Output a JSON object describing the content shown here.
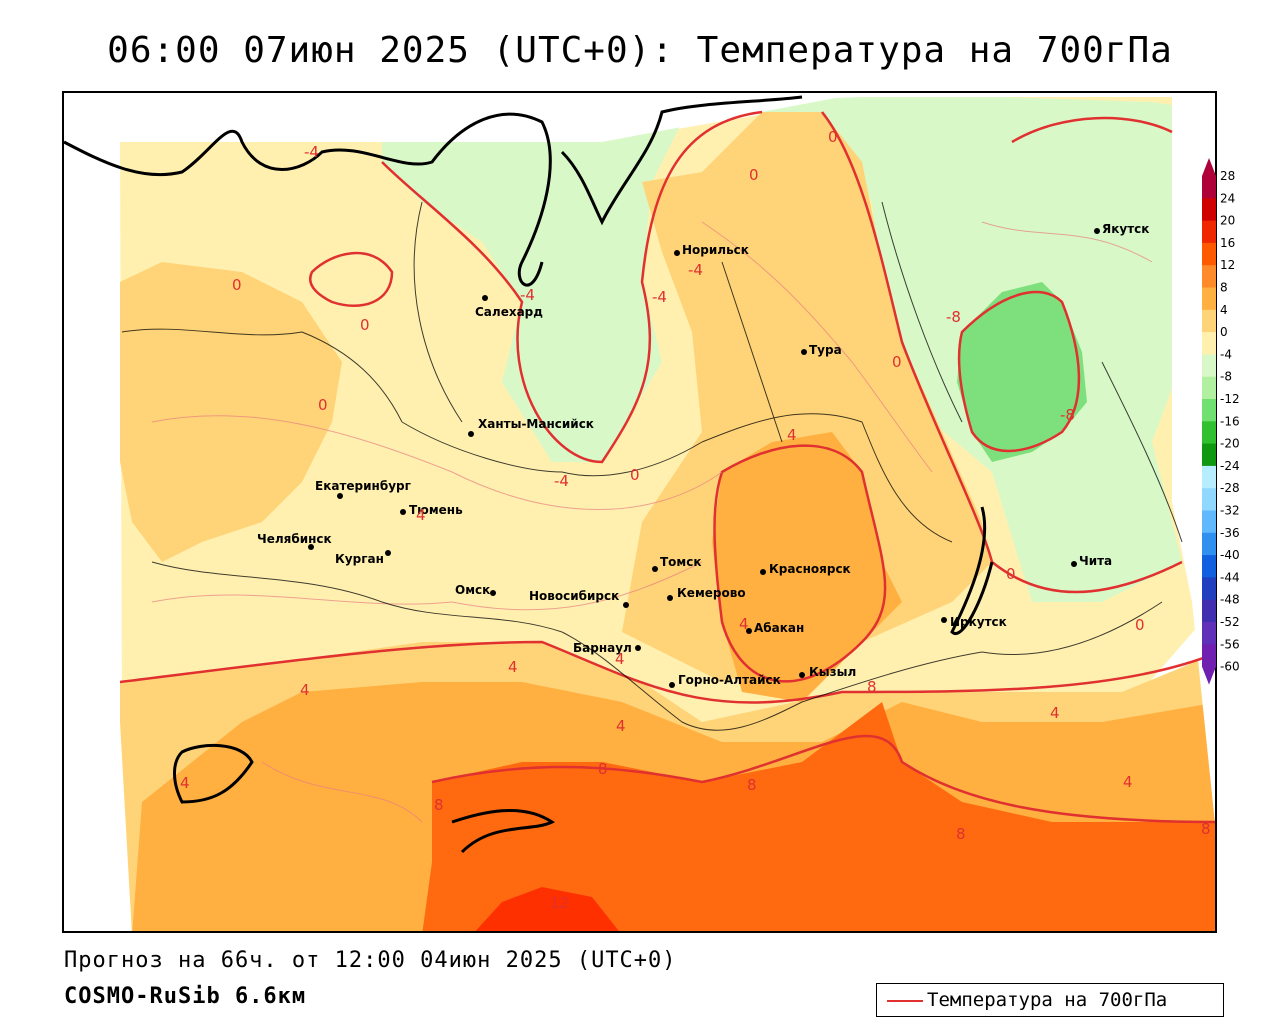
{
  "title": "06:00 07июн 2025 (UTC+0): Температура на 700гПа",
  "forecast_line": "Прогноз на 66ч. от 12:00 04июн 2025 (UTC+0)",
  "model_line": "COSMO-RuSib 6.6км",
  "legend": {
    "label": "Температура на 700гПа",
    "color": "#e03030"
  },
  "colorbar": {
    "ticks": [
      "28",
      "24",
      "20",
      "16",
      "12",
      "8",
      "4",
      "0",
      "-4",
      "-8",
      "-12",
      "-16",
      "-20",
      "-24",
      "-28",
      "-32",
      "-36",
      "-40",
      "-44",
      "-48",
      "-52",
      "-56",
      "-60"
    ],
    "colors": [
      "#b0003a",
      "#d00000",
      "#f02800",
      "#ff5a00",
      "#ff8a2a",
      "#ffb040",
      "#ffd478",
      "#fff0b0",
      "#d8f8c8",
      "#b0f0a0",
      "#70e070",
      "#30c030",
      "#109810",
      "#b8ecff",
      "#90d8ff",
      "#60b8ff",
      "#3090f0",
      "#1060e0",
      "#2040c0",
      "#4030b0",
      "#6030b8",
      "#7020b0"
    ]
  },
  "cities": [
    {
      "name": "Салехард"
    },
    {
      "name": "Норильск"
    },
    {
      "name": "Тура"
    },
    {
      "name": "Якутск"
    },
    {
      "name": "Ханты-Мансийск"
    },
    {
      "name": "Екатеринбург"
    },
    {
      "name": "Тюмень"
    },
    {
      "name": "Челябинск"
    },
    {
      "name": "Курган"
    },
    {
      "name": "Омск"
    },
    {
      "name": "Томск"
    },
    {
      "name": "Новосибирск"
    },
    {
      "name": "Кемерово"
    },
    {
      "name": "Красноярск"
    },
    {
      "name": "Барнаул"
    },
    {
      "name": "Абакан"
    },
    {
      "name": "Иркутск"
    },
    {
      "name": "Чита"
    },
    {
      "name": "Горно-Алтайск"
    },
    {
      "name": "Кызыл"
    }
  ],
  "isotherm_labels": [
    "-4",
    "0",
    "0",
    "0",
    "0",
    "-4",
    "-4",
    "-4",
    "0",
    "-8",
    "0",
    "-8",
    "4",
    "0",
    "-4",
    "4",
    "4",
    "4",
    "4",
    "4",
    "4",
    "8",
    "8",
    "4",
    "8",
    "4",
    "8",
    "12",
    "8",
    "4",
    "0",
    "8",
    "0"
  ]
}
